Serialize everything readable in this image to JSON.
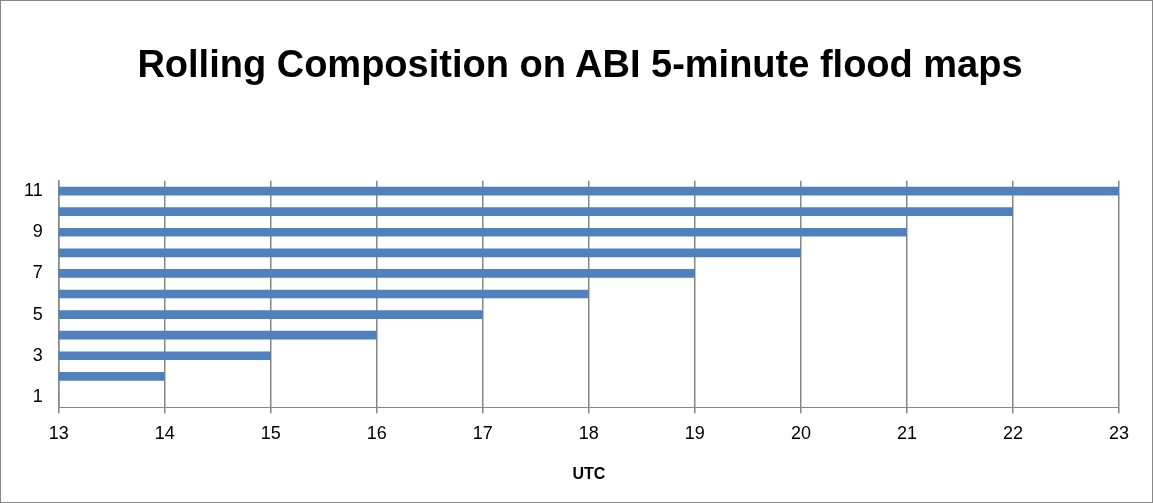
{
  "chart_data": {
    "type": "bar",
    "orientation": "horizontal",
    "title": "Rolling Composition on ABI 5-minute flood maps",
    "xlabel": "UTC",
    "categories": [
      "11",
      null,
      "9",
      null,
      "7",
      null,
      "5",
      null,
      "3",
      null,
      "1"
    ],
    "values": [
      23,
      22,
      21,
      20,
      19,
      18,
      17,
      16,
      15,
      14,
      13
    ],
    "color": "#4f81bd",
    "xlim": [
      13,
      23
    ],
    "xticks": [
      13,
      14,
      15,
      16,
      17,
      18,
      19,
      20,
      21,
      22,
      23
    ],
    "grid": "x",
    "legend": false
  }
}
